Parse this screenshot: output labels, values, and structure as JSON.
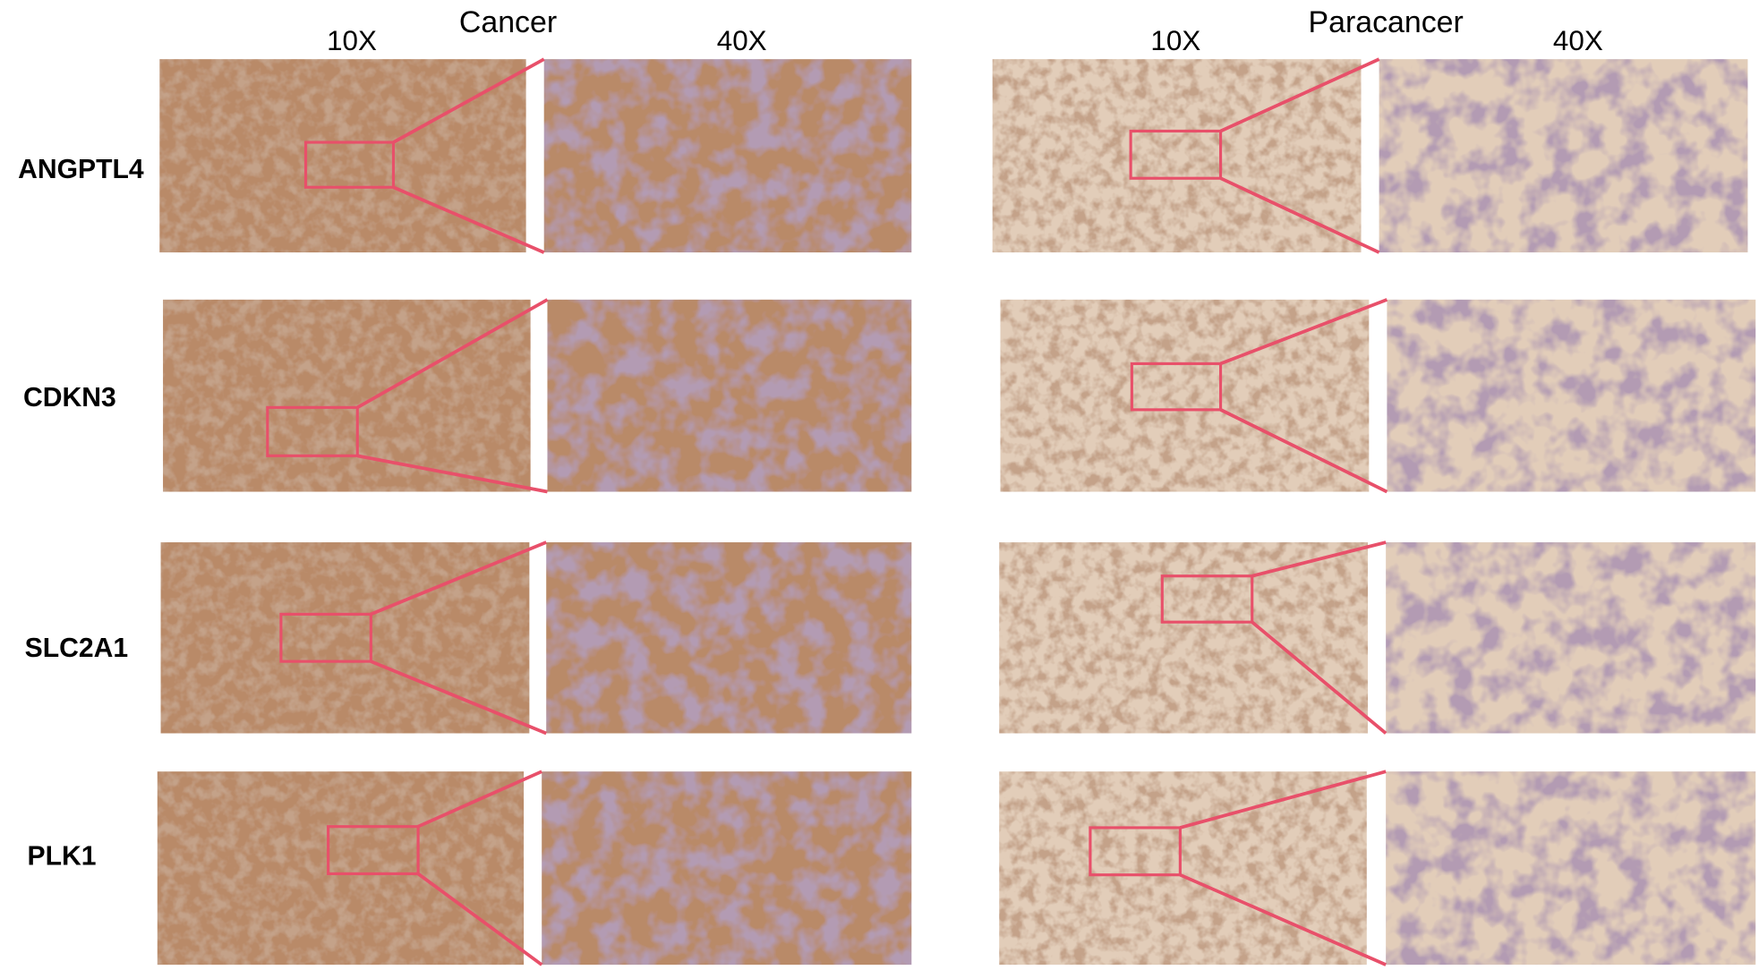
{
  "groups": [
    {
      "title": "Cancer",
      "magnifications": [
        "10X",
        "40X"
      ]
    },
    {
      "title": "Paracancer",
      "magnifications": [
        "10X",
        "40X"
      ]
    }
  ],
  "genes": [
    "ANGPTL4",
    "CDKN3",
    "SLC2A1",
    "PLK1"
  ],
  "colors": {
    "zoom_box": "#e8506a",
    "cancer_stain": "#b98a68",
    "paracancer_stain": "#e2cdb9",
    "background": "#ffffff"
  }
}
